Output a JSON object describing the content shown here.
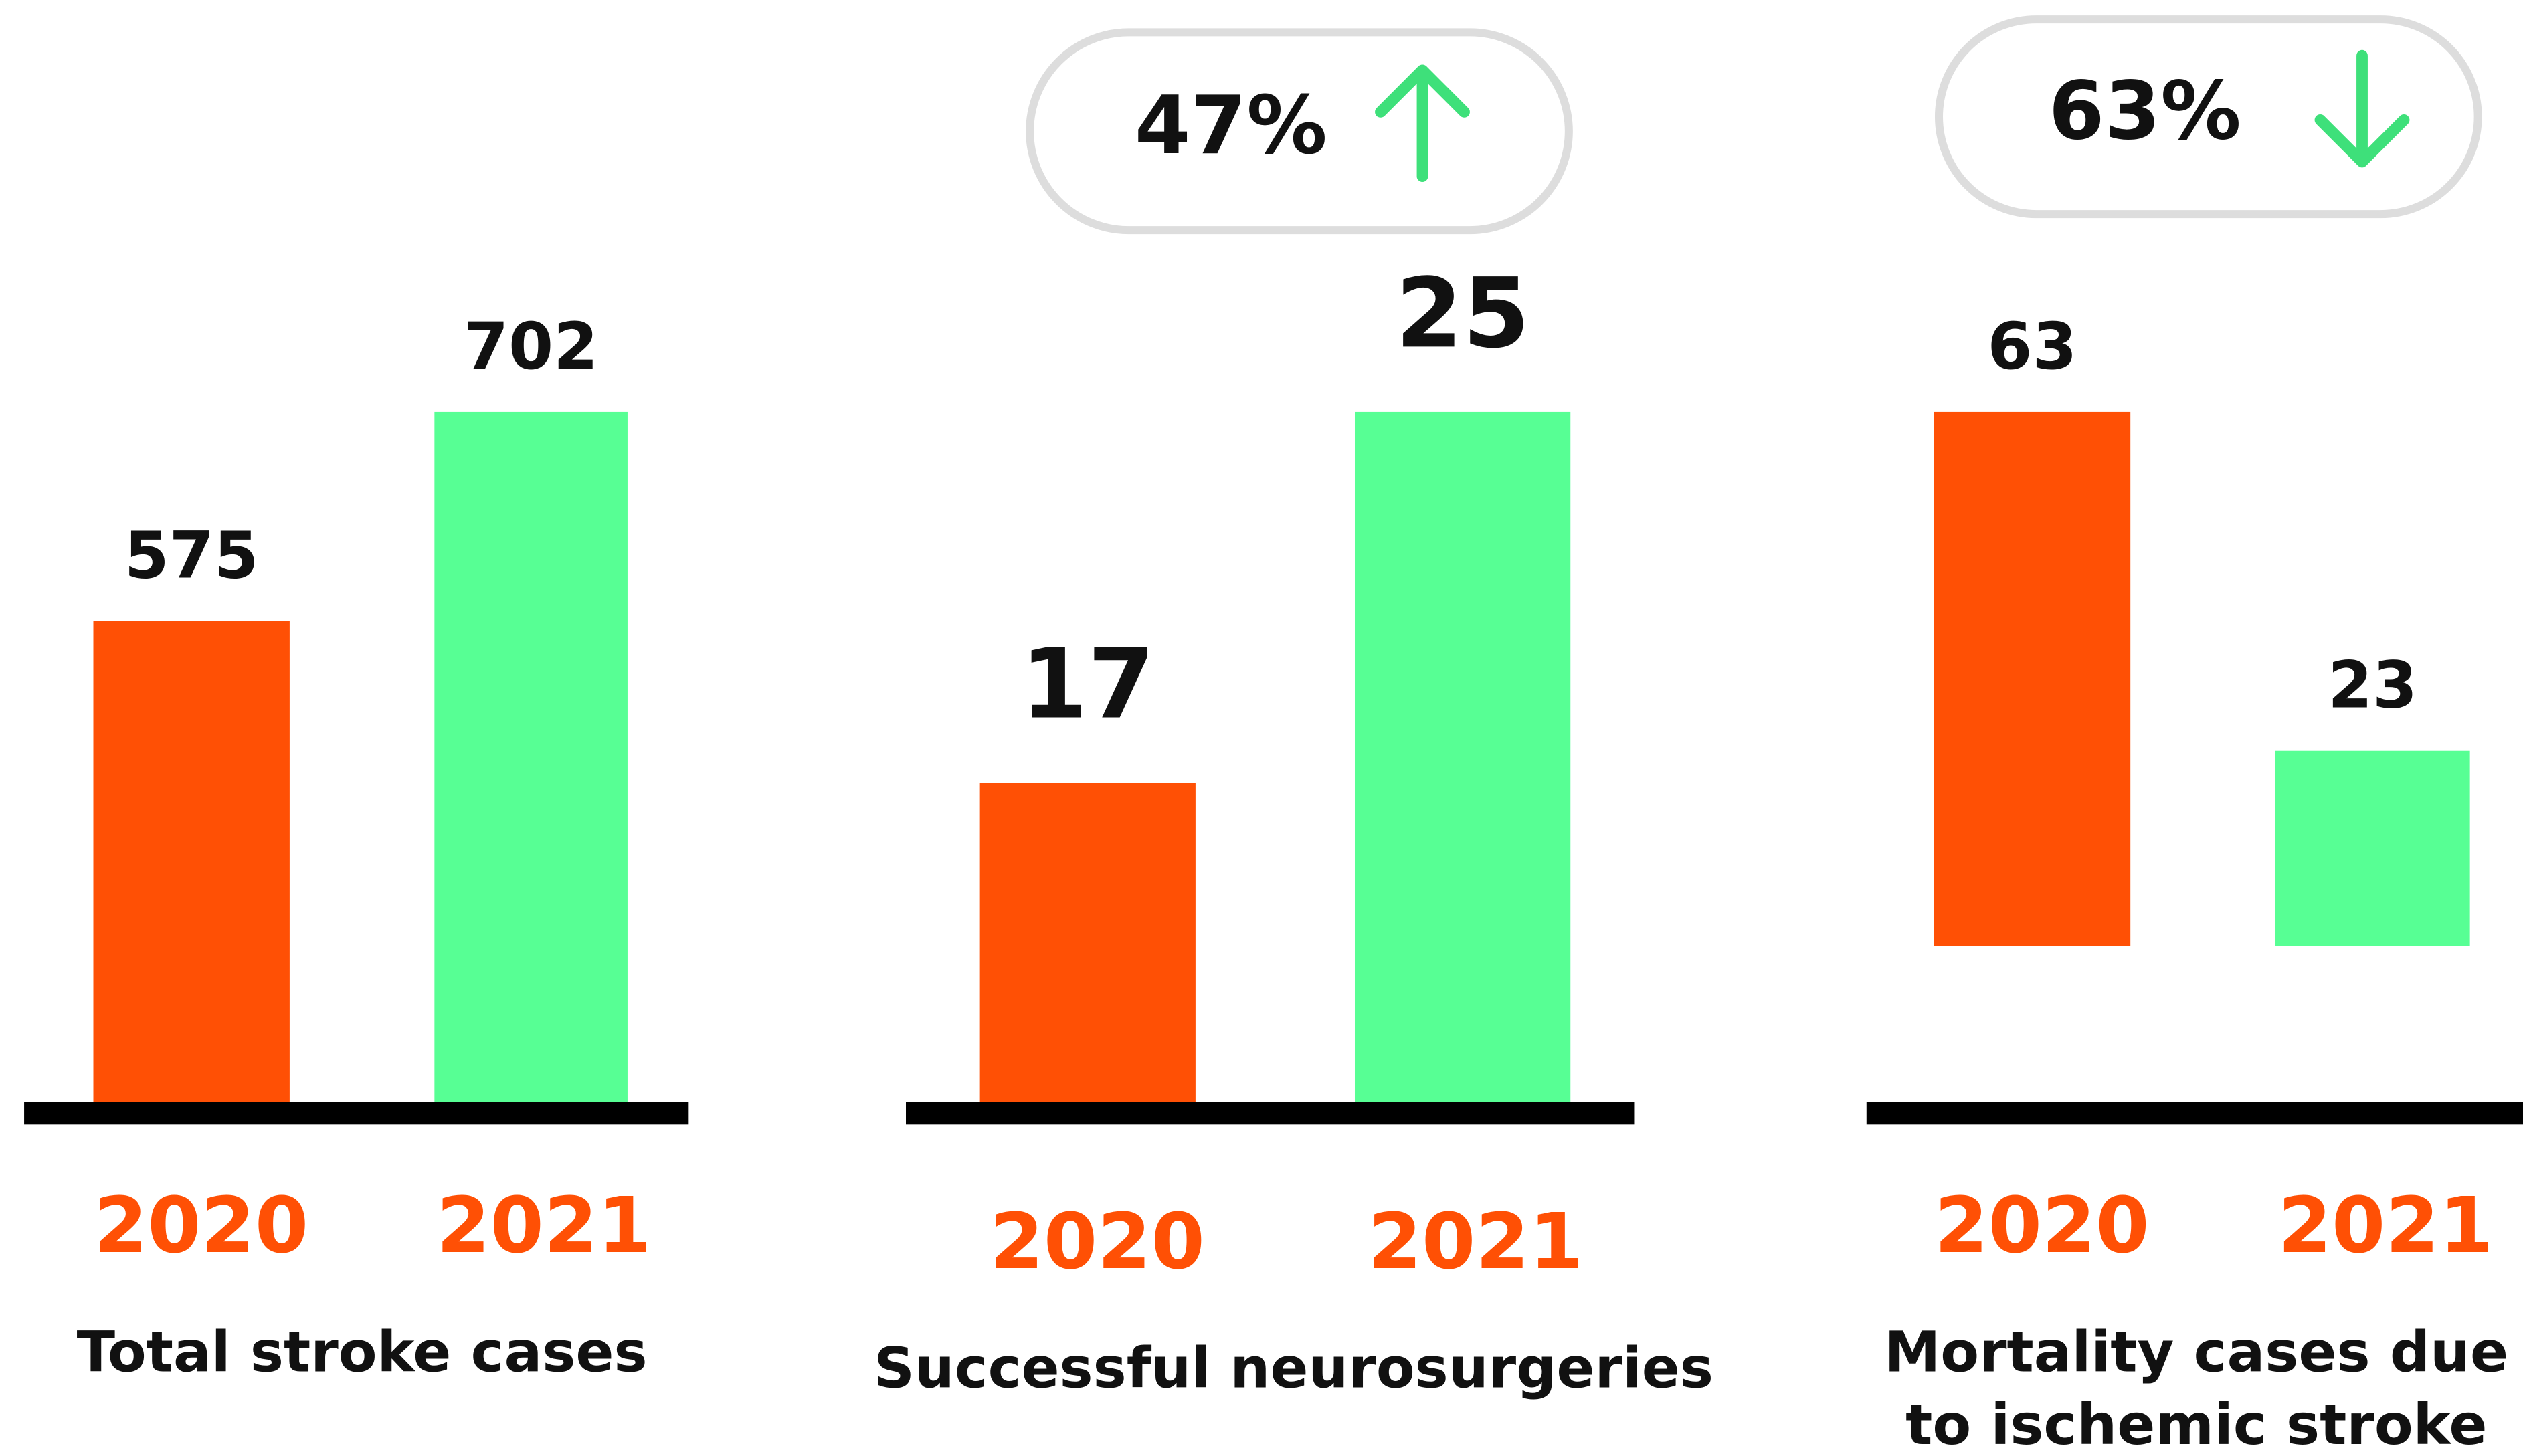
{
  "chart_data": [
    {
      "type": "bar",
      "title": [
        "Total stroke cases"
      ],
      "categories": [
        "2020",
        "2021"
      ],
      "values": [
        575,
        702
      ],
      "colors": [
        "#ff5005",
        "#57ff94"
      ],
      "ylim": [
        280,
        702
      ]
    },
    {
      "type": "bar",
      "title": [
        "Successful neurosurgeries"
      ],
      "categories": [
        "2020",
        "2021"
      ],
      "values": [
        17,
        25
      ],
      "colors": [
        "#ff5005",
        "#57ff94"
      ],
      "ylim": [
        10,
        25
      ],
      "badge": {
        "label": "47%",
        "direction": "up"
      }
    },
    {
      "type": "bar",
      "title": [
        "Mortality  cases due",
        "to ischemic stroke"
      ],
      "categories": [
        "2020",
        "2021"
      ],
      "values": [
        63,
        23
      ],
      "colors": [
        "#ff5005",
        "#57ff94"
      ],
      "ylim": [
        -19,
        63
      ],
      "badge": {
        "label": "63%",
        "direction": "down"
      }
    }
  ]
}
